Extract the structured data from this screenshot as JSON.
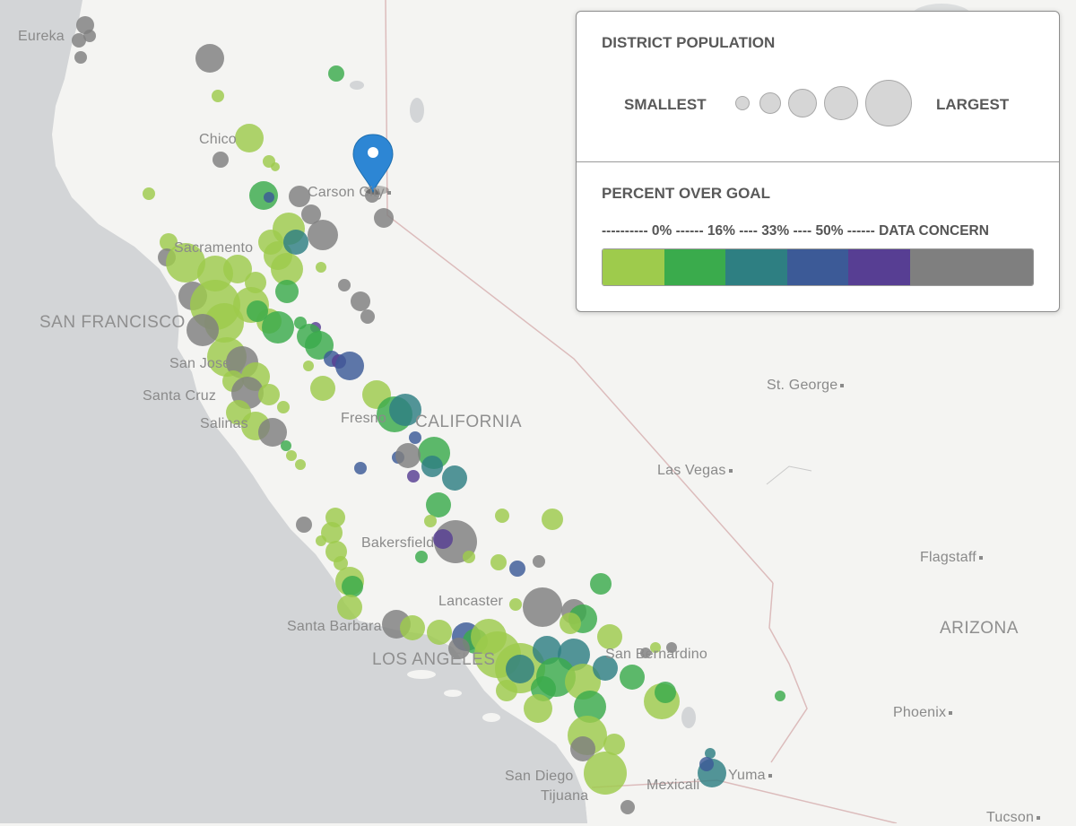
{
  "map": {
    "colors": {
      "ocean": "#d2d4d6",
      "land": "#f4f4f2",
      "border": "#dcbcbc",
      "cat0": "#9ecb4c",
      "cat16": "#3aab4c",
      "cat33": "#2e7f82",
      "cat50": "#3c5a97",
      "catHigh": "#573e93",
      "concern": "#7f7f7f",
      "marker": "#2d86d4"
    },
    "labels": {
      "eureka": "Eureka",
      "chico": "Chico",
      "carson_city": "Carson City",
      "sacramento": "Sacramento",
      "san_francisco": "SAN FRANCISCO",
      "san_jose": "San Jose",
      "santa_cruz": "Santa Cruz",
      "salinas": "Salinas",
      "fresno": "Fresno",
      "california": "CALIFORNIA",
      "st_george": "St. George",
      "las_vegas": "Las Vegas",
      "bakersfield": "Bakersfield",
      "flagstaff": "Flagstaff",
      "lancaster": "Lancaster",
      "santa_barbara": "Santa Barbara",
      "los_angeles": "LOS ANGELES",
      "san_bernardino": "San Bernardino",
      "arizona": "ARIZONA",
      "phoenix": "Phoenix",
      "san_diego": "San Diego",
      "tijuana": "Tijuana",
      "mexicali": "Mexicali",
      "yuma": "Yuma",
      "tucson": "Tucson"
    },
    "marker_icon": "map-pin-icon"
  },
  "legend": {
    "population_title": "DISTRICT POPULATION",
    "smallest_label": "SMALLEST",
    "largest_label": "LARGEST",
    "goal_title": "PERCENT OVER GOAL",
    "scale_text": "---------- 0% ------ 16% ---- 33% ---- 50% ------ DATA CONCERN",
    "categories": [
      "0%",
      "16%",
      "33%",
      "50%",
      "over 50%",
      "DATA CONCERN"
    ]
  }
}
